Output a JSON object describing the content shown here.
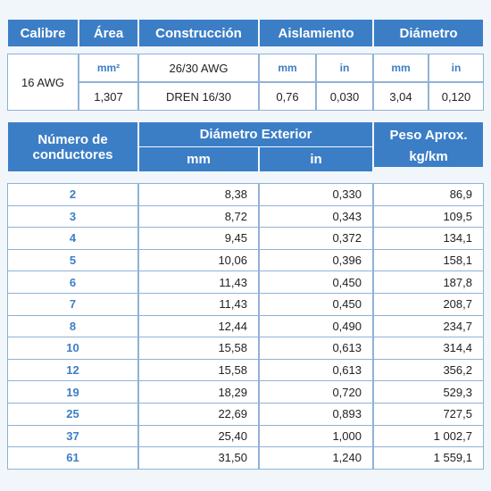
{
  "spec_table": {
    "headers": [
      "Calibre",
      "Área",
      "Construcción",
      "Aislamiento",
      "Diámetro"
    ],
    "caliber": "16 AWG",
    "area": {
      "unit": "mm²",
      "value": "1,307"
    },
    "construction": {
      "top": "26/30 AWG",
      "bottom": "DREN 16/30"
    },
    "insulation": {
      "units": [
        "mm",
        "in"
      ],
      "values": [
        "0,76",
        "0,030"
      ]
    },
    "diameter": {
      "units": [
        "mm",
        "in"
      ],
      "values": [
        "3,04",
        "0,120"
      ]
    }
  },
  "conductor_table": {
    "headers": {
      "count": "Número de conductores",
      "diameter": "Diámetro Exterior",
      "diameter_units": [
        "mm",
        "in"
      ],
      "weight": "Peso Aprox.",
      "weight_unit": "kg/km"
    },
    "rows": [
      [
        "2",
        "8,38",
        "0,330",
        "86,9"
      ],
      [
        "3",
        "8,72",
        "0,343",
        "109,5"
      ],
      [
        "4",
        "9,45",
        "0,372",
        "134,1"
      ],
      [
        "5",
        "10,06",
        "0,396",
        "158,1"
      ],
      [
        "6",
        "11,43",
        "0,450",
        "187,8"
      ],
      [
        "7",
        "11,43",
        "0,450",
        "208,7"
      ],
      [
        "8",
        "12,44",
        "0,490",
        "234,7"
      ],
      [
        "10",
        "15,58",
        "0,613",
        "314,4"
      ],
      [
        "12",
        "15,58",
        "0,613",
        "356,2"
      ],
      [
        "19",
        "18,29",
        "0,720",
        "529,3"
      ],
      [
        "25",
        "22,69",
        "0,893",
        "727,5"
      ],
      [
        "37",
        "25,40",
        "1,000",
        "1 002,7"
      ],
      [
        "61",
        "31,50",
        "1,240",
        "1 559,1"
      ]
    ]
  }
}
